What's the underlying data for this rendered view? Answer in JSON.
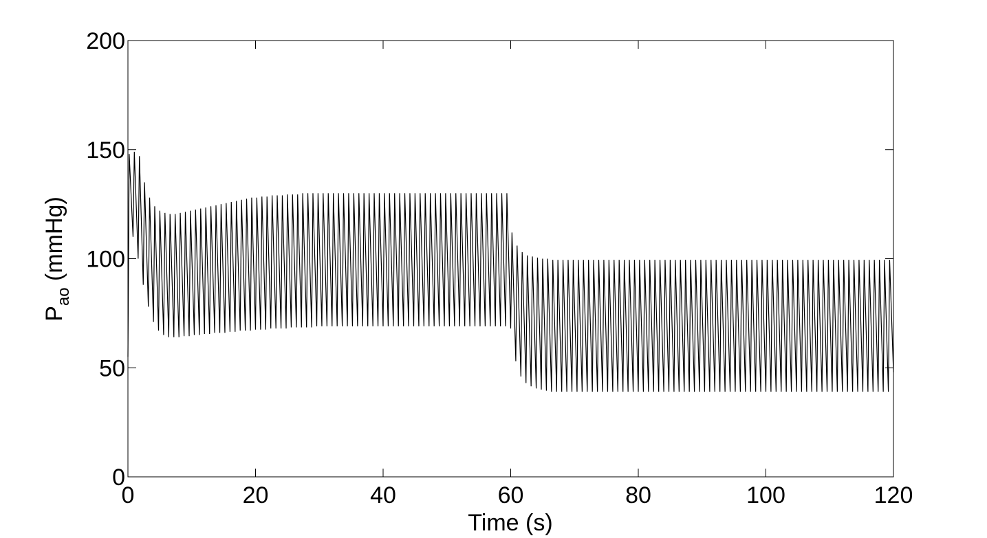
{
  "chart_data": {
    "type": "line",
    "xlabel": "Time (s)",
    "ylabel": {
      "text": "P",
      "subscript": "ao",
      "suffix": " (mmHg)"
    },
    "xlim": [
      0,
      120
    ],
    "xticks": [
      0,
      20,
      40,
      60,
      80,
      100,
      120
    ],
    "ylim": [
      0,
      200
    ],
    "yticks": [
      0,
      50,
      100,
      150,
      200
    ],
    "color": "#000000",
    "x": [
      0,
      0.2,
      0.8,
      1,
      1.6,
      1.8,
      2.4,
      2.6,
      3.2,
      3.4,
      4,
      4.2,
      4.8,
      5,
      5.6,
      5.8,
      6.4,
      6.6,
      7.2,
      7.4,
      8,
      8.2,
      8.8,
      9,
      9.6,
      9.8,
      10.4,
      10.6,
      11.2,
      11.4,
      12,
      12.2,
      12.8,
      13,
      13.6,
      13.8,
      14.4,
      14.6,
      15.2,
      15.4,
      16,
      16.2,
      16.8,
      17,
      17.6,
      17.8,
      18.4,
      18.6,
      19.2,
      19.4,
      20,
      20.2,
      20.8,
      21,
      21.6,
      21.8,
      22.4,
      22.6,
      23.2,
      23.4,
      24,
      24.2,
      24.8,
      25,
      25.6,
      25.8,
      26.4,
      26.6,
      27.2,
      27.4,
      28,
      28.2,
      28.8,
      29,
      29.6,
      29.8,
      30.4,
      30.6,
      31.2,
      31.4,
      32,
      32.2,
      32.8,
      33,
      33.6,
      33.8,
      34.4,
      34.6,
      35.2,
      35.4,
      36,
      36.2,
      36.8,
      37,
      37.6,
      37.8,
      38.4,
      38.6,
      39.2,
      39.4,
      40,
      40.2,
      40.8,
      41,
      41.6,
      41.8,
      42.4,
      42.6,
      43.2,
      43.4,
      44,
      44.2,
      44.8,
      45,
      45.6,
      45.8,
      46.4,
      46.6,
      47.2,
      47.4,
      48,
      48.2,
      48.8,
      49,
      49.6,
      49.8,
      50.4,
      50.6,
      51.2,
      51.4,
      52,
      52.2,
      52.8,
      53,
      53.6,
      53.8,
      54.4,
      54.6,
      55.2,
      55.4,
      56,
      56.2,
      56.8,
      57,
      57.6,
      57.8,
      58.4,
      58.6,
      59.2,
      59.4,
      60,
      60.2,
      60.8,
      61,
      61.6,
      61.8,
      62.4,
      62.6,
      63.2,
      63.4,
      64,
      64.2,
      64.8,
      65,
      65.6,
      65.8,
      66.4,
      66.6,
      67.2,
      67.4,
      68,
      68.2,
      68.8,
      69,
      69.6,
      69.8,
      70.4,
      70.6,
      71.2,
      71.4,
      72,
      72.2,
      72.8,
      73,
      73.6,
      73.8,
      74.4,
      74.6,
      75.2,
      75.4,
      76,
      76.2,
      76.8,
      77,
      77.6,
      77.8,
      78.4,
      78.6,
      79.2,
      79.4,
      80,
      80.2,
      80.8,
      81,
      81.6,
      81.8,
      82.4,
      82.6,
      83.2,
      83.4,
      84,
      84.2,
      84.8,
      85,
      85.6,
      85.8,
      86.4,
      86.6,
      87.2,
      87.4,
      88,
      88.2,
      88.8,
      89,
      89.6,
      89.8,
      90.4,
      90.6,
      91.2,
      91.4,
      92,
      92.2,
      92.8,
      93,
      93.6,
      93.8,
      94.4,
      94.6,
      95.2,
      95.4,
      96,
      96.2,
      96.8,
      97,
      97.6,
      97.8,
      98.4,
      98.6,
      99.2,
      99.4,
      100,
      100.2,
      100.8,
      101,
      101.6,
      101.8,
      102.4,
      102.6,
      103.2,
      103.4,
      104,
      104.2,
      104.8,
      105,
      105.6,
      105.8,
      106.4,
      106.6,
      107.2,
      107.4,
      108,
      108.2,
      108.8,
      109,
      109.6,
      109.8,
      110.4,
      110.6,
      111.2,
      111.4,
      112,
      112.2,
      112.8,
      113,
      113.6,
      113.8,
      114.4,
      114.6,
      115.2,
      115.4,
      116,
      116.2,
      116.8,
      117,
      117.6,
      117.8,
      118.4,
      118.6,
      119.2,
      119.4,
      120
    ],
    "values": [
      55,
      148,
      110,
      149,
      100,
      147,
      88,
      135,
      78,
      128,
      71,
      124,
      67,
      122,
      65,
      121,
      64,
      120.5,
      64,
      120.5,
      64,
      121,
      64.5,
      121.5,
      64.5,
      122,
      65,
      122.5,
      65,
      123,
      65.5,
      123.5,
      65.5,
      124,
      66,
      124.5,
      66,
      125,
      66,
      125.5,
      66.5,
      126,
      66.5,
      126.5,
      67,
      127,
      67,
      127.5,
      67,
      128,
      67.5,
      128,
      67.5,
      128.5,
      67.5,
      128.5,
      68,
      129,
      68,
      129,
      68,
      129,
      68,
      129.5,
      68.5,
      129.5,
      68.5,
      129.5,
      68.5,
      130,
      68.5,
      130,
      68.5,
      130,
      69,
      130,
      69,
      130,
      69,
      130,
      69,
      130,
      69,
      130,
      69,
      130,
      69,
      130,
      69,
      130,
      69,
      130,
      69,
      130,
      69,
      130,
      69,
      130,
      69,
      130,
      69,
      130,
      69,
      130,
      69,
      130,
      69,
      130,
      69,
      130,
      69,
      130,
      69,
      130,
      69,
      130,
      69,
      130,
      69,
      130,
      69,
      130,
      69,
      130,
      69,
      130,
      69,
      130,
      69,
      130,
      69,
      130,
      69,
      130,
      69,
      130,
      69,
      130,
      69,
      130,
      69,
      130,
      69,
      130,
      69,
      130,
      69,
      130,
      69,
      130,
      68,
      112,
      53,
      106,
      46,
      103,
      43,
      101.5,
      41.5,
      101,
      40.5,
      100.5,
      40,
      100,
      39.5,
      100,
      39,
      99.5,
      39,
      99.5,
      39,
      99.5,
      39,
      99.5,
      39,
      99.5,
      39,
      99.5,
      39,
      99.5,
      39,
      99.5,
      39,
      99.5,
      39,
      99.5,
      39,
      99.5,
      39,
      99.5,
      39,
      99.5,
      39,
      99.5,
      39,
      99.5,
      39,
      99.5,
      39,
      99.5,
      39,
      99.5,
      39,
      99.5,
      39,
      99.5,
      39,
      99.5,
      39,
      99.5,
      39,
      99.5,
      39,
      99.5,
      39,
      99.5,
      39,
      99.5,
      39,
      99.5,
      39,
      99.5,
      39,
      99.5,
      39,
      99.5,
      39,
      99.5,
      39,
      99.5,
      39,
      99.5,
      39,
      99.5,
      39,
      99.5,
      39,
      99.5,
      39,
      99.5,
      39,
      99.5,
      39,
      99.5,
      39,
      99.5,
      39,
      99.5,
      39,
      99.5,
      39,
      99.5,
      39,
      99.5,
      39,
      99.5,
      39,
      99.5,
      39,
      99.5,
      39,
      99.5,
      39,
      99.5,
      39,
      99.5,
      39,
      99.5,
      39,
      99.5,
      39,
      99.5,
      39,
      99.5,
      39,
      99.5,
      39,
      99.5,
      39,
      99.5,
      39,
      99.5,
      39,
      99.5,
      39,
      99.5,
      39,
      99.5,
      39,
      99.5,
      39,
      99.5,
      39,
      99.5,
      39,
      99.5,
      39,
      99.5,
      39,
      99.5,
      48
    ]
  }
}
